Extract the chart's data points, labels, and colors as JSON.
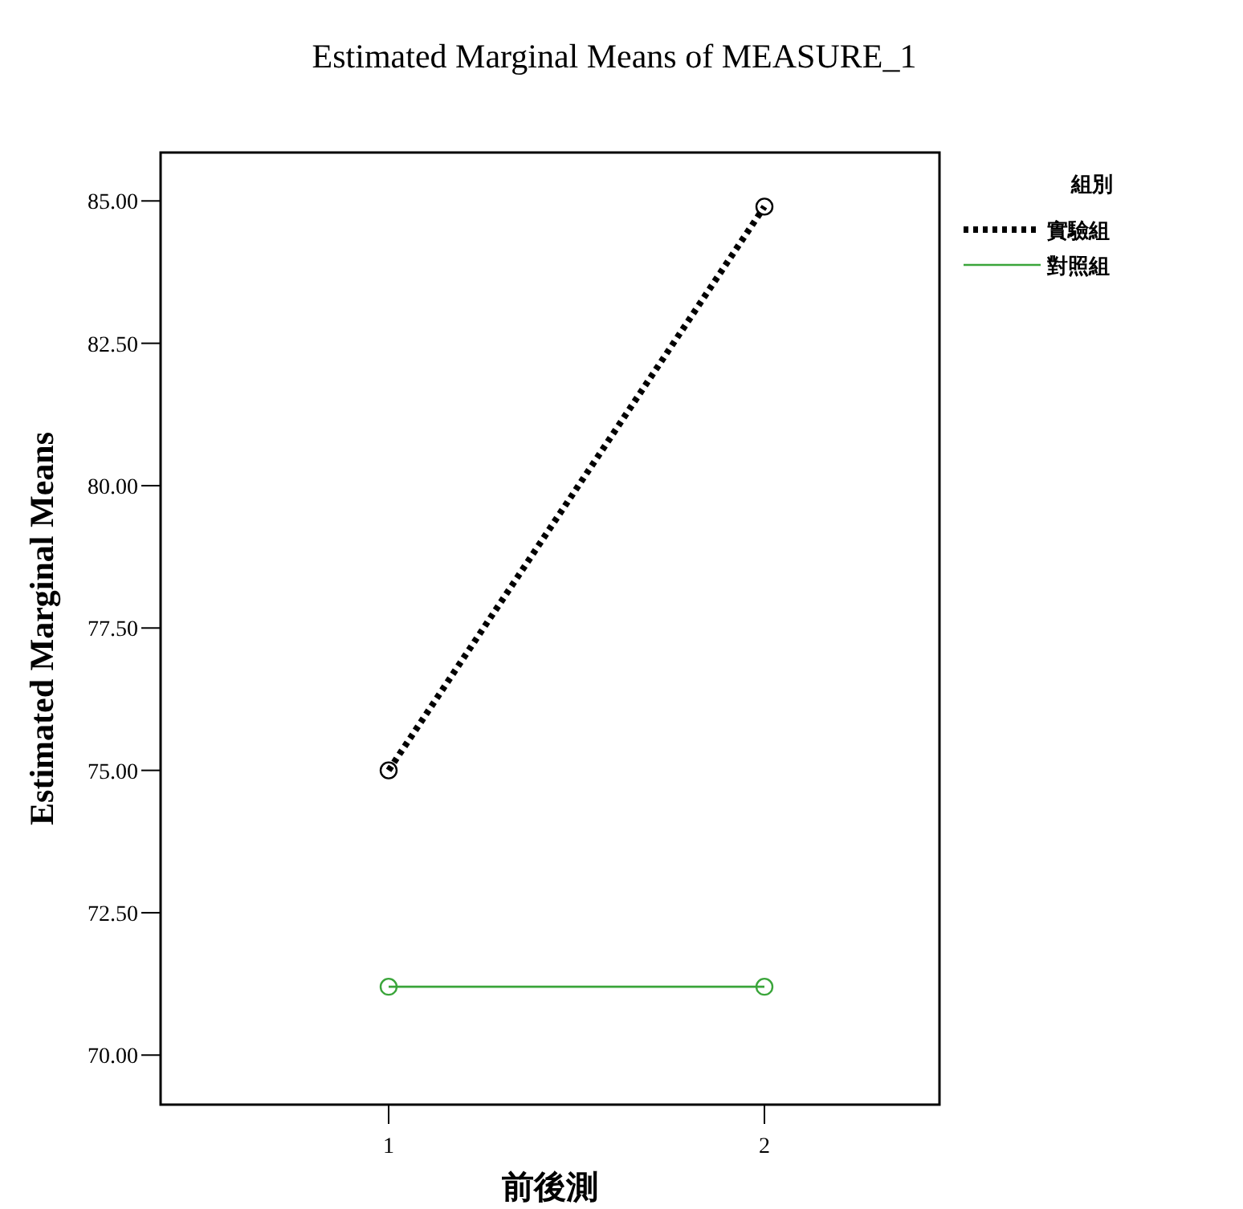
{
  "chart_data": {
    "type": "line",
    "title": "Estimated Marginal Means of MEASURE_1",
    "xlabel": "前後測",
    "ylabel": "Estimated Marginal Means",
    "legend_title": "組別",
    "categories": [
      "1",
      "2"
    ],
    "series": [
      {
        "name": "實驗組",
        "color": "#000000",
        "values": [
          75.0,
          84.9
        ],
        "line_style": "dotted"
      },
      {
        "name": "對照組",
        "color": "#3aa53a",
        "values": [
          71.2,
          71.2
        ],
        "line_style": "solid"
      }
    ],
    "ylim": [
      69.13,
      85.85
    ],
    "yticks": [
      {
        "value": 70,
        "label": "70.00"
      },
      {
        "value": 72.5,
        "label": "72.50"
      },
      {
        "value": 75,
        "label": "75.00"
      },
      {
        "value": 77.5,
        "label": "77.50"
      },
      {
        "value": 80,
        "label": "80.00"
      },
      {
        "value": 82.5,
        "label": "82.50"
      },
      {
        "value": 85,
        "label": "85.00"
      }
    ],
    "marker": "circle",
    "legend": "right",
    "grid": false
  }
}
